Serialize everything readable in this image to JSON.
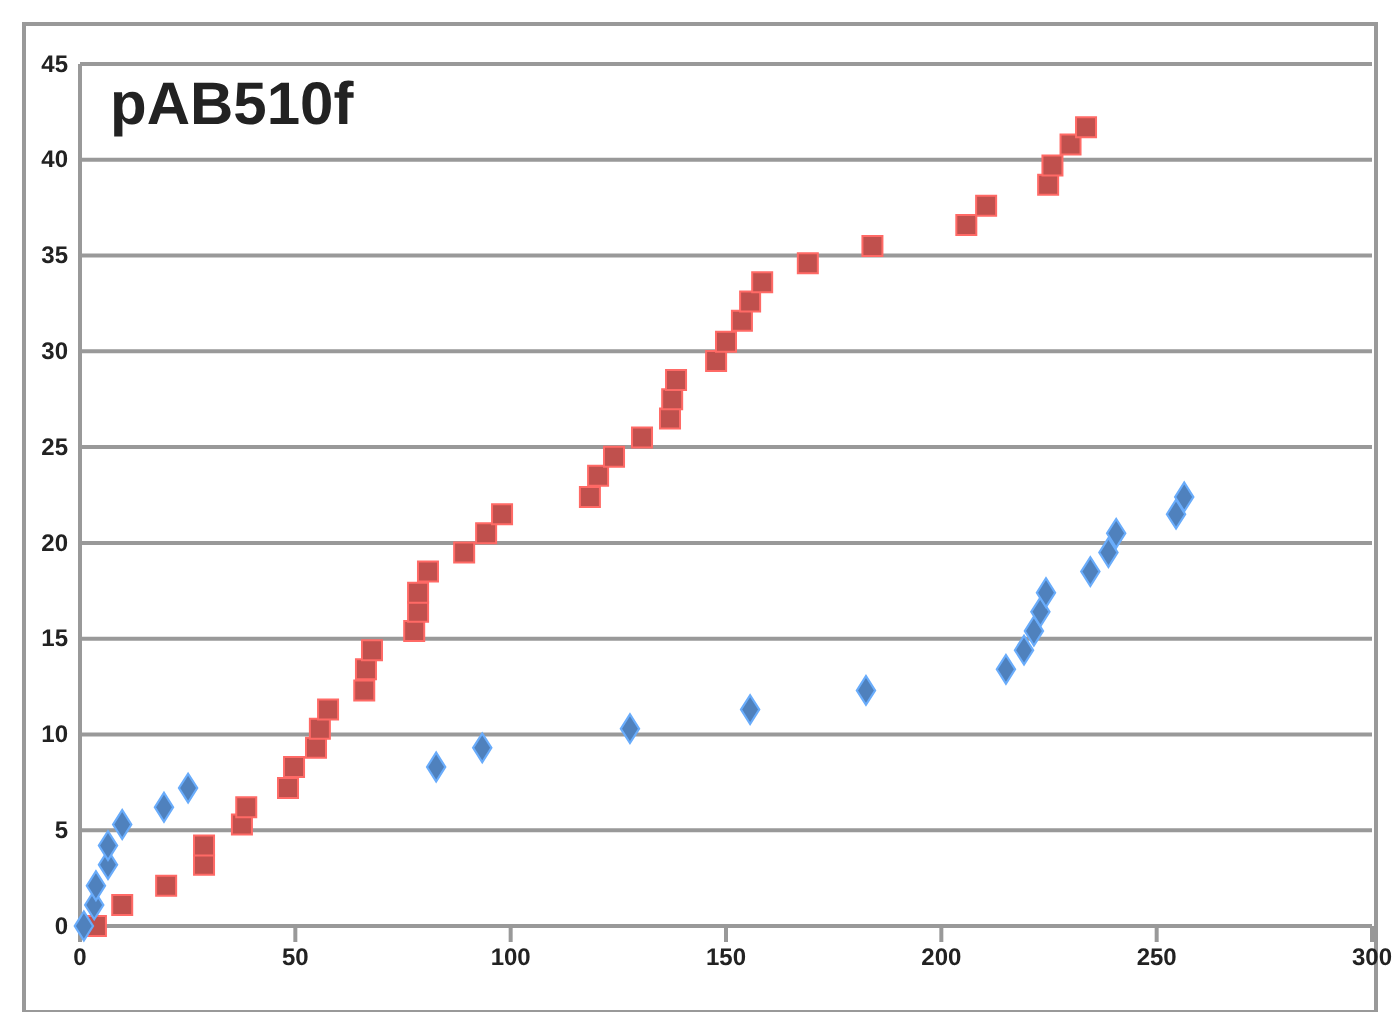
{
  "chart_data": {
    "type": "scatter",
    "title": "pAB510f",
    "xlim": [
      0,
      300
    ],
    "xticks": [
      0,
      50,
      100,
      150,
      200,
      250,
      300
    ],
    "ylim": [
      0,
      45
    ],
    "yticks": [
      0,
      5,
      10,
      15,
      20,
      25,
      30,
      35,
      40,
      45
    ],
    "grid": "y",
    "series": [
      {
        "color": "#c0504d",
        "marker": "square",
        "x": [
          3.7,
          9.8,
          20,
          28.8,
          28.8,
          37.6,
          38.6,
          48.3,
          49.7,
          54.8,
          55.7,
          57.6,
          66,
          66.4,
          67.8,
          77.6,
          78.5,
          78.5,
          80.8,
          89.2,
          94.3,
          98,
          118.4,
          120.3,
          124,
          130.5,
          137,
          137.5,
          138.4,
          147.7,
          150,
          153.7,
          155.6,
          158.4,
          169,
          184,
          205.8,
          210.4,
          224.8,
          225.8,
          230,
          233.6
        ],
        "values": [
          0,
          1.1,
          2.1,
          3.2,
          4.2,
          5.3,
          6.2,
          7.2,
          8.3,
          9.3,
          10.3,
          11.3,
          12.3,
          13.4,
          14.4,
          15.4,
          16.4,
          17.4,
          18.5,
          19.5,
          20.5,
          21.5,
          22.4,
          23.5,
          24.5,
          25.5,
          26.5,
          27.5,
          28.5,
          29.5,
          30.5,
          31.6,
          32.6,
          33.6,
          34.6,
          35.5,
          36.6,
          37.6,
          38.7,
          39.7,
          40.8,
          41.7
        ]
      },
      {
        "color": "#4f81bd",
        "marker": "diamond",
        "x": [
          0.9,
          3.3,
          3.7,
          6.5,
          6.5,
          9.8,
          19.5,
          25.1,
          82.7,
          93.4,
          127.7,
          155.6,
          182.5,
          215,
          219.2,
          221.5,
          223,
          224.3,
          234.6,
          238.8,
          240.6,
          254.5,
          256.4
        ],
        "values": [
          0,
          1.1,
          2.1,
          3.2,
          4.2,
          5.3,
          6.2,
          7.2,
          8.3,
          9.3,
          10.3,
          11.3,
          12.3,
          13.4,
          14.4,
          15.4,
          16.4,
          17.4,
          18.5,
          19.5,
          20.5,
          21.5,
          22.4
        ]
      }
    ]
  }
}
